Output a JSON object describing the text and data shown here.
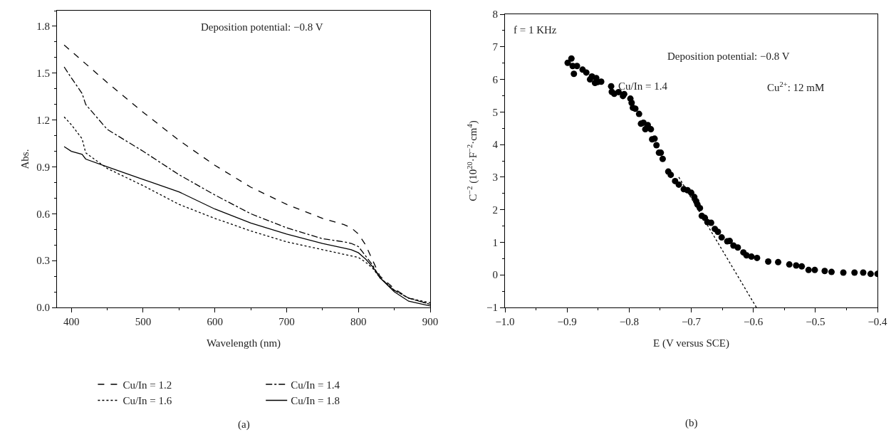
{
  "chart_data": [
    {
      "type": "line",
      "xlabel": "Wavelength (nm)",
      "ylabel": "Abs.",
      "x": [
        390,
        400,
        415,
        420,
        450,
        500,
        550,
        600,
        650,
        700,
        750,
        780,
        790,
        800,
        810,
        820,
        830,
        850,
        870,
        900
      ],
      "xlim": [
        380,
        900
      ],
      "xticks": [
        400,
        500,
        600,
        700,
        800,
        900
      ],
      "ylim": [
        0,
        1.9
      ],
      "yticks": [
        {
          "value": 0,
          "label": "0.0"
        },
        0.3,
        0.6,
        0.9,
        1.2,
        1.5,
        1.8
      ],
      "grid": false,
      "legend": "bottom",
      "marker": "none",
      "series": [
        {
          "name": "Cu/In = 1.2",
          "color": "#000000",
          "line_style": "dashed",
          "values": [
            1.68,
            1.64,
            1.58,
            1.56,
            1.44,
            1.25,
            1.07,
            0.91,
            0.77,
            0.66,
            0.57,
            0.53,
            0.51,
            0.47,
            0.4,
            0.3,
            0.2,
            0.12,
            0.06,
            0.02
          ]
        },
        {
          "name": "Cu/In = 1.4",
          "color": "#000000",
          "line_style": "dashdot",
          "values": [
            1.54,
            1.47,
            1.37,
            1.3,
            1.14,
            1.0,
            0.85,
            0.72,
            0.6,
            0.51,
            0.44,
            0.42,
            0.41,
            0.39,
            0.33,
            0.27,
            0.19,
            0.11,
            0.06,
            0.02
          ]
        },
        {
          "name": "Cu/In = 1.6",
          "color": "#000000",
          "line_style": "dotted",
          "values": [
            1.22,
            1.17,
            1.08,
            0.99,
            0.89,
            0.78,
            0.66,
            0.57,
            0.49,
            0.42,
            0.37,
            0.34,
            0.33,
            0.32,
            0.29,
            0.25,
            0.19,
            0.11,
            0.06,
            0.03
          ]
        },
        {
          "name": "Cu/In = 1.8",
          "color": "#000000",
          "line_style": "solid",
          "values": [
            1.03,
            1.0,
            0.98,
            0.95,
            0.9,
            0.82,
            0.74,
            0.63,
            0.54,
            0.47,
            0.41,
            0.38,
            0.37,
            0.35,
            0.31,
            0.26,
            0.19,
            0.1,
            0.04,
            0.01
          ]
        }
      ],
      "annotations": [
        "Deposition potential: −0.8 V",
        "(a)"
      ]
    },
    {
      "type": "scatter",
      "xlabel": "E (V versus SCE)",
      "ylabel": "C$^{−2}$ (10$^{20}$·F$^{−2}$·cm$^{4}$)",
      "xlim": [
        -1,
        -0.4
      ],
      "xticks": [
        {
          "value": -1,
          "label": "−1.0"
        },
        {
          "value": -0.9,
          "label": "−0.9"
        },
        {
          "value": -0.8,
          "label": "−0.8"
        },
        {
          "value": -0.7,
          "label": "−0.7"
        },
        {
          "value": -0.6,
          "label": "−0.6"
        },
        {
          "value": -0.5,
          "label": "−0.5"
        },
        {
          "value": -0.4,
          "label": "−0.4"
        }
      ],
      "ylim": [
        -1,
        8
      ],
      "yticks": [
        {
          "value": -1,
          "label": "−1"
        },
        0,
        1,
        2,
        3,
        4,
        5,
        6,
        7,
        8
      ],
      "grid": false,
      "legend": false,
      "marker": "circle",
      "series": [
        {
          "color": "#000000",
          "x": [
            -0.899,
            -0.893,
            -0.891,
            -0.889,
            -0.884,
            -0.875,
            -0.869,
            -0.863,
            -0.86,
            -0.855,
            -0.853,
            -0.851,
            -0.845,
            -0.829,
            -0.828,
            -0.824,
            -0.817,
            -0.81,
            -0.808,
            -0.798,
            -0.796,
            -0.794,
            -0.79,
            -0.784,
            -0.781,
            -0.777,
            -0.774,
            -0.77,
            -0.765,
            -0.763,
            -0.759,
            -0.756,
            -0.752,
            -0.749,
            -0.746,
            -0.737,
            -0.733,
            -0.726,
            -0.72,
            -0.712,
            -0.706,
            -0.7,
            -0.695,
            -0.692,
            -0.69,
            -0.686,
            -0.683,
            -0.678,
            -0.674,
            -0.668,
            -0.662,
            -0.657,
            -0.651,
            -0.642,
            -0.638,
            -0.632,
            -0.625,
            -0.616,
            -0.611,
            -0.603,
            -0.594,
            -0.576,
            -0.56,
            -0.542,
            -0.531,
            -0.522,
            -0.511,
            -0.501,
            -0.485,
            -0.474,
            -0.455,
            -0.437,
            -0.423,
            -0.411,
            -0.4
          ],
          "values": [
            6.51,
            6.64,
            6.41,
            6.17,
            6.41,
            6.3,
            6.21,
            6.0,
            6.09,
            5.89,
            6.04,
            5.92,
            5.93,
            5.79,
            5.62,
            5.56,
            5.61,
            5.49,
            5.55,
            5.41,
            5.28,
            5.13,
            5.1,
            4.94,
            4.64,
            4.67,
            4.47,
            4.6,
            4.47,
            4.16,
            4.18,
            3.98,
            3.75,
            3.75,
            3.56,
            3.17,
            3.07,
            2.88,
            2.77,
            2.63,
            2.6,
            2.52,
            2.39,
            2.26,
            2.16,
            2.05,
            1.81,
            1.75,
            1.62,
            1.6,
            1.41,
            1.32,
            1.15,
            1.03,
            1.04,
            0.9,
            0.84,
            0.69,
            0.6,
            0.56,
            0.52,
            0.41,
            0.39,
            0.32,
            0.29,
            0.26,
            0.15,
            0.15,
            0.12,
            0.09,
            0.07,
            0.07,
            0.07,
            0.03,
            0.03
          ]
        },
        {
          "type": "line",
          "color": "#000000",
          "line_style": "dotted",
          "marker": "none",
          "x": [
            -0.72,
            -0.595
          ],
          "values": [
            3.0,
            -1
          ]
        }
      ],
      "annotations": [
        "f = 1 KHz",
        "Deposition potential: −0.8 V",
        "Cu/In = 1.4",
        "Cu$^{2+}$: 12 mM",
        "(b)"
      ]
    }
  ]
}
